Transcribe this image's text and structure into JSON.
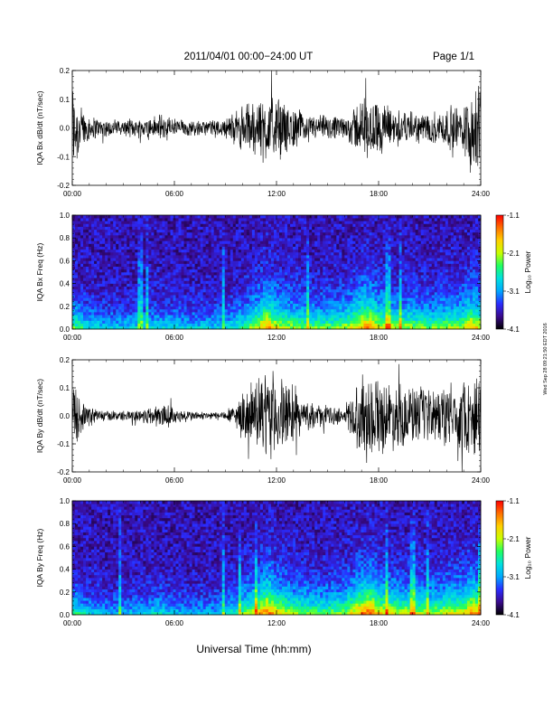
{
  "header": {
    "title": "2011/04/01   00:00−24:00 UT",
    "page": "Page 1/1"
  },
  "footer": {
    "xlabel": "Universal Time (hh:mm)",
    "side_note": "Wed Sep 28 09:21:50 EDT 2016"
  },
  "colors": {
    "trace": "#000000",
    "spectrogram_bg": "#2a0a6e",
    "colormap": [
      "#000000",
      "#3a0a8c",
      "#2a2cff",
      "#00a8ff",
      "#00e0e0",
      "#20ff60",
      "#c8ff00",
      "#ffd000",
      "#ff7000",
      "#ff0000"
    ]
  },
  "chart_data": [
    {
      "type": "line",
      "ylabel": "IQA Bx dB/dt (nT/sec)",
      "xlim": [
        0,
        24
      ],
      "ylim": [
        -0.2,
        0.2
      ],
      "x_ticks": [
        "00:00",
        "06:00",
        "12:00",
        "18:00",
        "24:00"
      ],
      "y_ticks": [
        "-0.2",
        "-0.1",
        "0.0",
        "0.1",
        "0.2"
      ],
      "envelope": {
        "hours": [
          0,
          0.3,
          0.6,
          1.0,
          2.0,
          3.0,
          4.0,
          5.0,
          5.5,
          6.0,
          7.0,
          8.0,
          9.0,
          9.5,
          10.0,
          11.0,
          11.5,
          12.0,
          12.5,
          13.0,
          14.0,
          15.0,
          16.0,
          16.5,
          17.0,
          17.5,
          18.0,
          19.0,
          20.0,
          21.0,
          22.0,
          23.0,
          23.5,
          24.0
        ],
        "amplitude": [
          0.2,
          0.15,
          0.08,
          0.05,
          0.035,
          0.03,
          0.04,
          0.05,
          0.06,
          0.04,
          0.03,
          0.03,
          0.04,
          0.06,
          0.09,
          0.12,
          0.14,
          0.12,
          0.1,
          0.08,
          0.05,
          0.05,
          0.04,
          0.08,
          0.13,
          0.12,
          0.11,
          0.08,
          0.06,
          0.06,
          0.08,
          0.1,
          0.2,
          0.18
        ]
      }
    },
    {
      "type": "heatmap",
      "ylabel": "IQA Bx Freq (Hz)",
      "colorbar_label": "Log₁₀ Power",
      "xlim": [
        0,
        24
      ],
      "ylim": [
        0,
        1.0
      ],
      "clim": [
        -4.1,
        -1.1
      ],
      "x_ticks": [
        "00:00",
        "06:00",
        "12:00",
        "18:00",
        "24:00"
      ],
      "y_ticks": [
        "0.0",
        "0.2",
        "0.4",
        "0.6",
        "0.8",
        "1.0"
      ],
      "colorbar_ticks": [
        "-1.1",
        "-2.1",
        "-3.1",
        "-4.1"
      ],
      "activity": {
        "hours": [
          0,
          1,
          2,
          3,
          4,
          5,
          6,
          7,
          8,
          9,
          10,
          11,
          11.5,
          12,
          13,
          14,
          15,
          16,
          17,
          17.5,
          18,
          19,
          20,
          21,
          22,
          23,
          23.5,
          24
        ],
        "level": [
          0.5,
          0.35,
          0.3,
          0.3,
          0.32,
          0.35,
          0.32,
          0.3,
          0.3,
          0.32,
          0.45,
          0.65,
          0.8,
          0.65,
          0.55,
          0.5,
          0.5,
          0.55,
          0.75,
          0.8,
          0.65,
          0.55,
          0.55,
          0.5,
          0.55,
          0.6,
          0.75,
          0.6
        ]
      }
    },
    {
      "type": "line",
      "ylabel": "IQA By dB/dt (nT/sec)",
      "xlim": [
        0,
        24
      ],
      "ylim": [
        -0.2,
        0.2
      ],
      "x_ticks": [
        "00:00",
        "06:00",
        "12:00",
        "18:00",
        "24:00"
      ],
      "y_ticks": [
        "-0.2",
        "-0.1",
        "0.0",
        "0.1",
        "0.2"
      ],
      "envelope": {
        "hours": [
          0,
          0.3,
          0.6,
          1.0,
          2.0,
          3.0,
          4.0,
          5.0,
          5.5,
          6.0,
          7.0,
          8.0,
          9.0,
          9.5,
          10.0,
          11.0,
          11.5,
          12.0,
          12.5,
          13.0,
          14.0,
          15.0,
          16.0,
          16.5,
          17.0,
          17.5,
          18.0,
          19.0,
          20.0,
          21.0,
          22.0,
          23.0,
          23.5,
          24.0
        ],
        "amplitude": [
          0.12,
          0.1,
          0.06,
          0.04,
          0.02,
          0.02,
          0.03,
          0.045,
          0.06,
          0.03,
          0.02,
          0.015,
          0.02,
          0.04,
          0.09,
          0.14,
          0.18,
          0.17,
          0.14,
          0.1,
          0.05,
          0.04,
          0.03,
          0.1,
          0.17,
          0.18,
          0.15,
          0.13,
          0.12,
          0.11,
          0.12,
          0.14,
          0.18,
          0.16
        ]
      }
    },
    {
      "type": "heatmap",
      "ylabel": "IQA By Freq (Hz)",
      "colorbar_label": "Log₁₀ Power",
      "xlim": [
        0,
        24
      ],
      "ylim": [
        0,
        1.0
      ],
      "clim": [
        -4.1,
        -1.1
      ],
      "x_ticks": [
        "00:00",
        "06:00",
        "12:00",
        "18:00",
        "24:00"
      ],
      "y_ticks": [
        "0.0",
        "0.2",
        "0.4",
        "0.6",
        "0.8",
        "1.0"
      ],
      "colorbar_ticks": [
        "-1.1",
        "-2.1",
        "-3.1",
        "-4.1"
      ],
      "activity": {
        "hours": [
          0,
          1,
          2,
          3,
          4,
          5,
          6,
          7,
          8,
          9,
          10,
          11,
          11.5,
          12,
          13,
          14,
          15,
          16,
          17,
          17.5,
          18,
          19,
          20,
          21,
          22,
          23,
          23.5,
          24
        ],
        "level": [
          0.45,
          0.3,
          0.25,
          0.25,
          0.28,
          0.35,
          0.28,
          0.25,
          0.25,
          0.3,
          0.5,
          0.7,
          0.85,
          0.7,
          0.55,
          0.5,
          0.5,
          0.55,
          0.8,
          0.85,
          0.7,
          0.6,
          0.6,
          0.55,
          0.6,
          0.65,
          0.8,
          0.65
        ]
      }
    }
  ]
}
